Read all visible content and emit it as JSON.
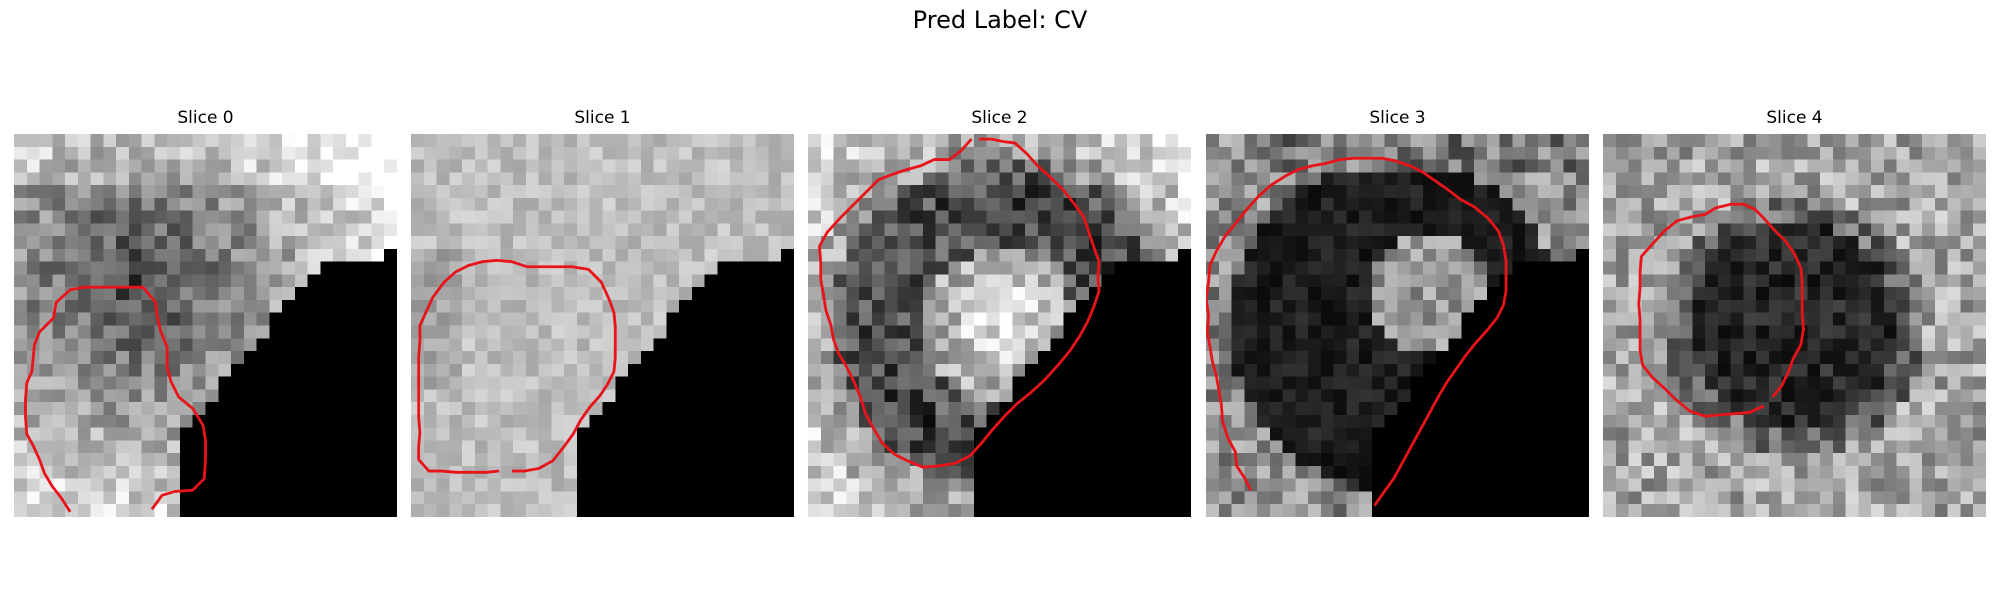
{
  "figure": {
    "title": "Pred Label: CV"
  },
  "slices": [
    {
      "label": "Slice 0",
      "seed": 11,
      "style": "dark-top-left",
      "mask_triangle": true
    },
    {
      "label": "Slice 1",
      "seed": 23,
      "style": "light",
      "mask_triangle": true
    },
    {
      "label": "Slice 2",
      "seed": 37,
      "style": "ring-bright-center",
      "mask_triangle": true
    },
    {
      "label": "Slice 3",
      "seed": 41,
      "style": "dark-ring",
      "mask_triangle": true
    },
    {
      "label": "Slice 4",
      "seed": 53,
      "style": "dark-center",
      "mask_triangle": false
    }
  ],
  "colors": {
    "contour": "#e8141a",
    "background": "#ffffff"
  }
}
